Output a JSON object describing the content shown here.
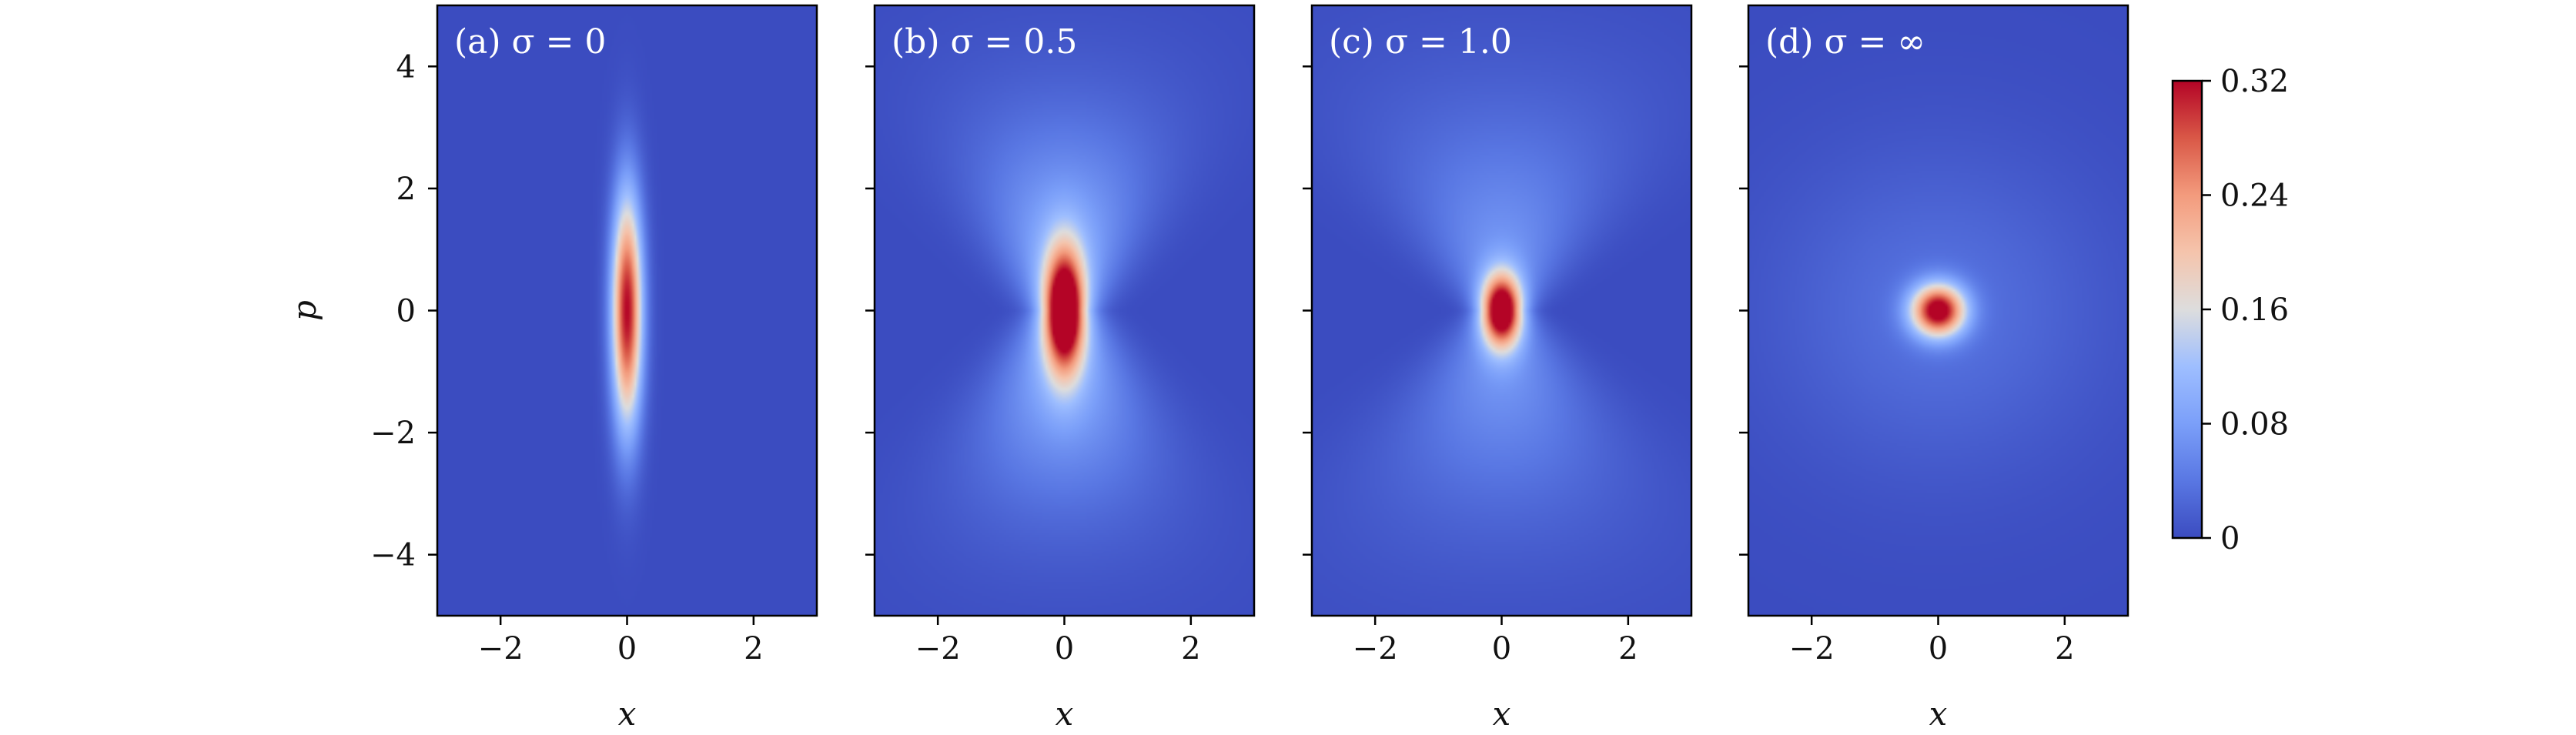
{
  "chart_data": {
    "type": "heatmap",
    "panels": [
      {
        "label": "(a) σ = 0",
        "sigma": 0,
        "xlabel": "x",
        "ylabel": "p"
      },
      {
        "label": "(b) σ = 0.5",
        "sigma": 0.5,
        "xlabel": "x",
        "ylabel": ""
      },
      {
        "label": "(c) σ = 1.0",
        "sigma": 1.0,
        "xlabel": "x",
        "ylabel": ""
      },
      {
        "label": "(d) σ = ∞",
        "sigma": "infinity",
        "xlabel": "x",
        "ylabel": ""
      }
    ],
    "xlim": [
      -3,
      3
    ],
    "ylim": [
      -5,
      5
    ],
    "x_ticks": [
      -2,
      0,
      2
    ],
    "x_tick_labels": [
      "−2",
      "0",
      "2"
    ],
    "y_ticks": [
      -4,
      -2,
      0,
      2,
      4
    ],
    "y_tick_labels": [
      "−4",
      "−2",
      "0",
      "2",
      "4"
    ],
    "colorbar": {
      "min": 0,
      "max": 0.32,
      "ticks": [
        0,
        0.08,
        0.16,
        0.24,
        0.32
      ],
      "tick_labels": [
        "0",
        "0.08",
        "0.16",
        "0.24",
        "0.32"
      ],
      "colormap": "coolwarm"
    },
    "peak_value": 0.32,
    "colors": {
      "low": "#3b4cc0",
      "mid": "#dddddd",
      "high": "#b40426"
    }
  }
}
